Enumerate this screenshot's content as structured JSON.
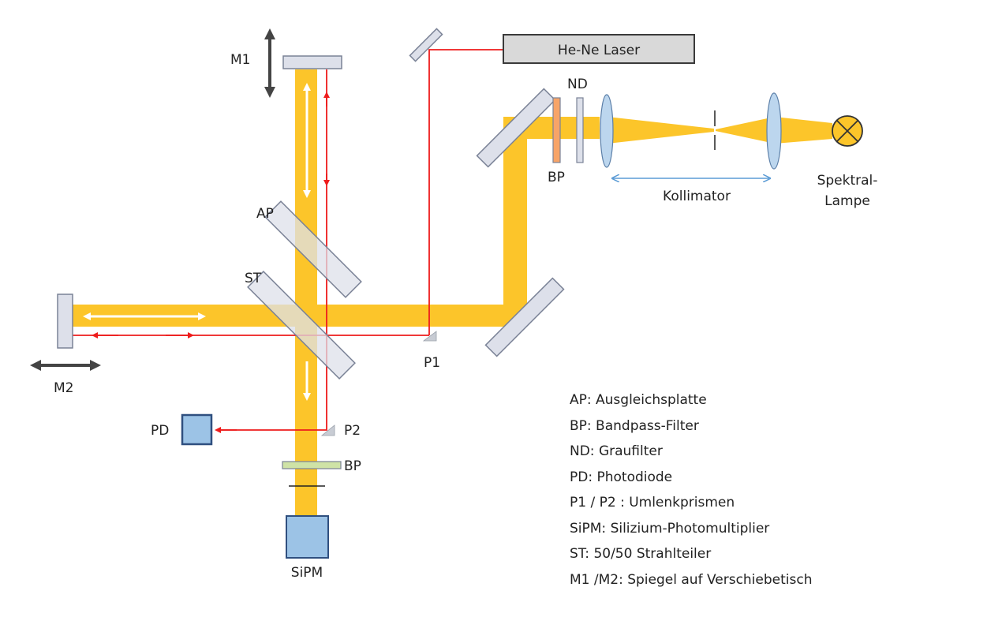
{
  "labels": {
    "laser": "He-Ne Laser",
    "m1": "M1",
    "m2": "M2",
    "nd": "ND",
    "bp_top": "BP",
    "bp_bottom": "BP",
    "kollimator": "Kollimator",
    "lamp_line1": "Spektral-",
    "lamp_line2": "Lampe",
    "ap": "AP",
    "st": "ST",
    "p1": "P1",
    "p2": "P2",
    "pd": "PD",
    "sipm": "SiPM"
  },
  "legend": [
    "AP: Ausgleichsplatte",
    "BP: Bandpass-Filter",
    "ND: Graufilter",
    "PD: Photodiode",
    "P1 / P2 : Umlenkprismen",
    "SiPM: Silizium-Photomultiplier",
    "ST: 50/50 Strahlteiler",
    "M1 /M2: Spiegel auf Verschiebetisch"
  ],
  "colors": {
    "beam": "#fcc52a",
    "laser": "#ee1c1c",
    "mirror_fill": "#dde0ea",
    "mirror_stroke": "#7a8296",
    "detector": "#9cc3e6",
    "detector_stroke": "#2f4f7f",
    "bp_orange": "#f7a468",
    "bp_green": "#cfe3a6",
    "kollimator_arrow": "#5b9bd5",
    "lamp": "#fcc52a"
  }
}
